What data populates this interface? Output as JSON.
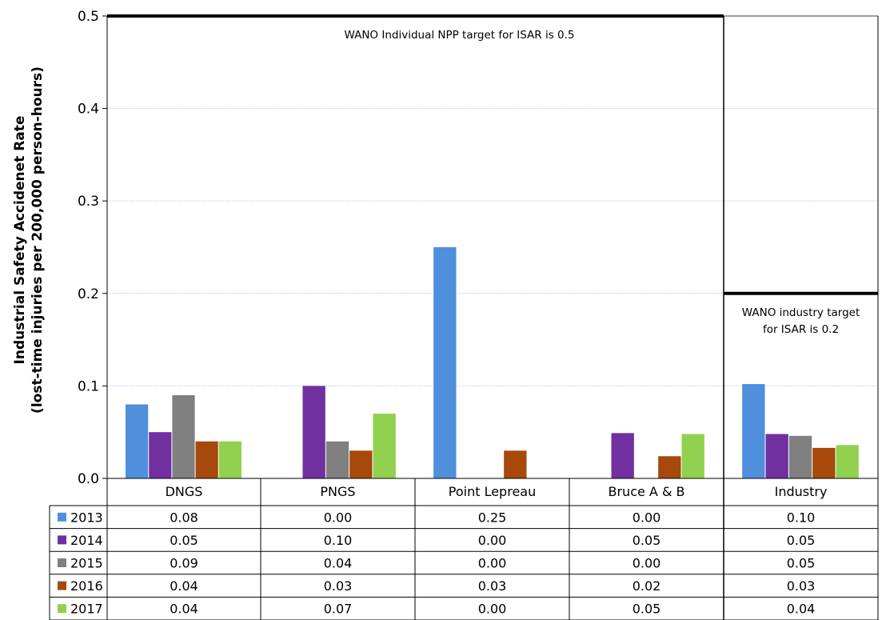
{
  "chart_data": {
    "type": "bar",
    "ylabel_line1": "Industrial Safety Accidenet Rate",
    "ylabel_line2": "(lost-time injuries per 200,000 person-hours)",
    "ylim": [
      0,
      0.5
    ],
    "yticks": [
      "0.0",
      "0.1",
      "0.2",
      "0.3",
      "0.4",
      "0.5"
    ],
    "grid": true,
    "categories": [
      "DNGS",
      "PNGS",
      "Point Lepreau",
      "Bruce A & B",
      "Industry"
    ],
    "series": [
      {
        "name": "2013",
        "color": "#4f8fdc",
        "values": [
          0.08,
          0.0,
          0.25,
          0.0,
          0.102
        ],
        "labels": [
          "0.08",
          "0.00",
          "0.25",
          "0.00",
          "0.10"
        ]
      },
      {
        "name": "2014",
        "color": "#7030a0",
        "values": [
          0.05,
          0.1,
          0.0,
          0.049,
          0.048
        ],
        "labels": [
          "0.05",
          "0.10",
          "0.00",
          "0.05",
          "0.05"
        ]
      },
      {
        "name": "2015",
        "color": "#808080",
        "values": [
          0.09,
          0.04,
          0.0,
          0.0,
          0.046
        ],
        "labels": [
          "0.09",
          "0.04",
          "0.00",
          "0.00",
          "0.05"
        ]
      },
      {
        "name": "2016",
        "color": "#a6490b",
        "values": [
          0.04,
          0.03,
          0.03,
          0.024,
          0.033
        ],
        "labels": [
          "0.04",
          "0.03",
          "0.03",
          "0.02",
          "0.03"
        ]
      },
      {
        "name": "2017",
        "color": "#92d050",
        "values": [
          0.04,
          0.07,
          0.0,
          0.048,
          0.036
        ],
        "labels": [
          "0.04",
          "0.07",
          "0.00",
          "0.05",
          "0.04"
        ]
      }
    ],
    "targets": [
      {
        "value": 0.5,
        "from_category": 0,
        "to_category": 3,
        "text_lines": [
          "WANO Individual NPP target for ISAR is 0.5"
        ]
      },
      {
        "value": 0.2,
        "from_category": 4,
        "to_category": 4,
        "text_lines": [
          "WANO industry target",
          "for ISAR is 0.2"
        ]
      }
    ]
  }
}
